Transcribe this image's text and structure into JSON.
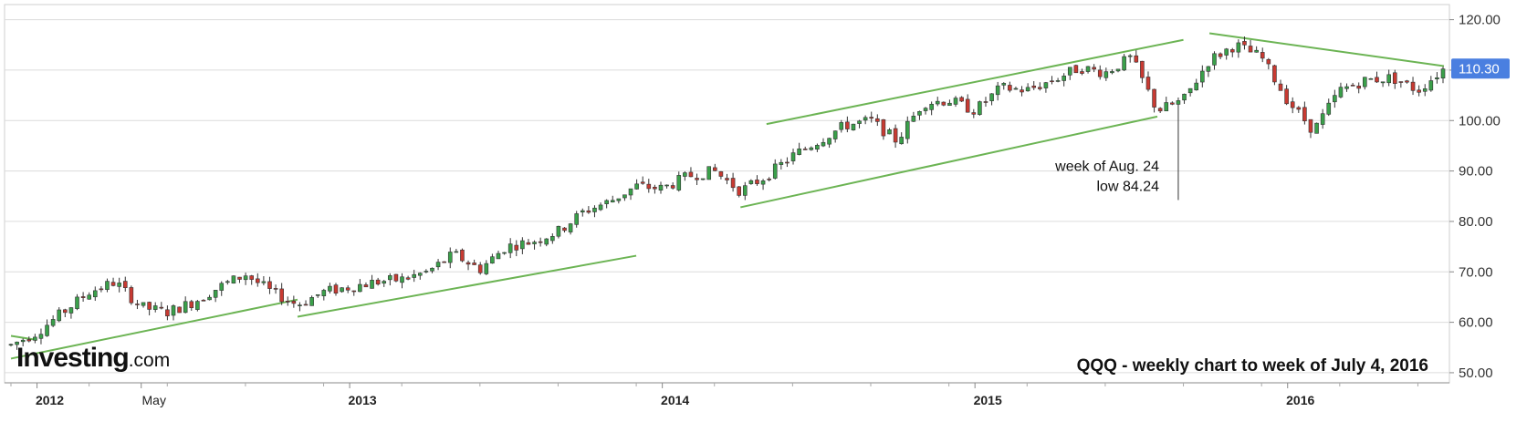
{
  "chart_data": {
    "type": "candlestick",
    "caption": "QQQ - weekly chart to week of July 4, 2016",
    "brand": {
      "name": "Investing",
      "suffix": ".com"
    },
    "y_axis": {
      "ticks": [
        "50.00",
        "60.00",
        "70.00",
        "80.00",
        "90.00",
        "100.00",
        "110.00",
        "120.00"
      ],
      "ylim": [
        48,
        123
      ],
      "position": "right"
    },
    "x_axis": {
      "ticks": [
        {
          "label": "2012",
          "date": "2012-01",
          "bold": true
        },
        {
          "label": "May",
          "date": "2012-05",
          "bold": false
        },
        {
          "label": "2013",
          "date": "2013-01",
          "bold": true
        },
        {
          "label": "2014",
          "date": "2014-01",
          "bold": true
        },
        {
          "label": "2015",
          "date": "2015-01",
          "bold": true
        },
        {
          "label": "2016",
          "date": "2016-01",
          "bold": true
        }
      ],
      "range": [
        "2011-12",
        "2016-07"
      ]
    },
    "current_price": {
      "value": 110.3,
      "label": "110.30",
      "color": "#4a7fe0"
    },
    "colors": {
      "up": "#3aa04a",
      "down": "#c83a32",
      "trendline": "#6cb454",
      "grid": "#dcdcdc"
    },
    "series": [
      {
        "date": "2011-12",
        "value": 55.5
      },
      {
        "date": "2012-01",
        "value": 58
      },
      {
        "date": "2012-02",
        "value": 62
      },
      {
        "date": "2012-03",
        "value": 66
      },
      {
        "date": "2012-04",
        "value": 68
      },
      {
        "date": "2012-05",
        "value": 63
      },
      {
        "date": "2012-06",
        "value": 62
      },
      {
        "date": "2012-07",
        "value": 64
      },
      {
        "date": "2012-08",
        "value": 67
      },
      {
        "date": "2012-09",
        "value": 69.5
      },
      {
        "date": "2012-10",
        "value": 66
      },
      {
        "date": "2012-11",
        "value": 63.5
      },
      {
        "date": "2012-12",
        "value": 66
      },
      {
        "date": "2013-01",
        "value": 67
      },
      {
        "date": "2013-02",
        "value": 68
      },
      {
        "date": "2013-03",
        "value": 68.5
      },
      {
        "date": "2013-04",
        "value": 70
      },
      {
        "date": "2013-05",
        "value": 73.5
      },
      {
        "date": "2013-06",
        "value": 70.5
      },
      {
        "date": "2013-07",
        "value": 75
      },
      {
        "date": "2013-08",
        "value": 76
      },
      {
        "date": "2013-09",
        "value": 78
      },
      {
        "date": "2013-10",
        "value": 82
      },
      {
        "date": "2013-11",
        "value": 84
      },
      {
        "date": "2013-12",
        "value": 87
      },
      {
        "date": "2014-01",
        "value": 86.5
      },
      {
        "date": "2014-02",
        "value": 89
      },
      {
        "date": "2014-03",
        "value": 90
      },
      {
        "date": "2014-04",
        "value": 86
      },
      {
        "date": "2014-05",
        "value": 89
      },
      {
        "date": "2014-06",
        "value": 93
      },
      {
        "date": "2014-07",
        "value": 96
      },
      {
        "date": "2014-08",
        "value": 99
      },
      {
        "date": "2014-09",
        "value": 100
      },
      {
        "date": "2014-10",
        "value": 96
      },
      {
        "date": "2014-11",
        "value": 103.5
      },
      {
        "date": "2014-12",
        "value": 104
      },
      {
        "date": "2015-01",
        "value": 102
      },
      {
        "date": "2015-02",
        "value": 106.5
      },
      {
        "date": "2015-03",
        "value": 106
      },
      {
        "date": "2015-04",
        "value": 108
      },
      {
        "date": "2015-05",
        "value": 110.5
      },
      {
        "date": "2015-06",
        "value": 109.5
      },
      {
        "date": "2015-07",
        "value": 112.5
      },
      {
        "date": "2015-08",
        "value": 102
      },
      {
        "date": "2015-09",
        "value": 104
      },
      {
        "date": "2015-10",
        "value": 112
      },
      {
        "date": "2015-11",
        "value": 115
      },
      {
        "date": "2015-12",
        "value": 112.5
      },
      {
        "date": "2016-01",
        "value": 104
      },
      {
        "date": "2016-02",
        "value": 98
      },
      {
        "date": "2016-03",
        "value": 106
      },
      {
        "date": "2016-04",
        "value": 108
      },
      {
        "date": "2016-05",
        "value": 108.5
      },
      {
        "date": "2016-06",
        "value": 106
      },
      {
        "date": "2016-07",
        "value": 110.3
      }
    ],
    "trendlines": [
      {
        "from": [
          "2011-12",
          57.3
        ],
        "to": [
          "2012-01",
          56.5
        ]
      },
      {
        "from": [
          "2011-12",
          52.8
        ],
        "to": [
          "2012-11",
          64.5
        ]
      },
      {
        "from": [
          "2012-11",
          61.1
        ],
        "to": [
          "2013-12",
          73.2
        ]
      },
      {
        "from": [
          "2014-04",
          82.8
        ],
        "to": [
          "2015-08",
          100.8
        ]
      },
      {
        "from": [
          "2014-05",
          99.3
        ],
        "to": [
          "2015-09",
          116.0
        ]
      },
      {
        "from": [
          "2015-10",
          117.3
        ],
        "to": [
          "2016-07",
          110.8
        ]
      }
    ],
    "annotations": [
      {
        "text": "week of Aug. 24",
        "date": "2015-08",
        "value": 90
      },
      {
        "text": "low 84.24",
        "date": "2015-08",
        "value": 86
      }
    ]
  }
}
